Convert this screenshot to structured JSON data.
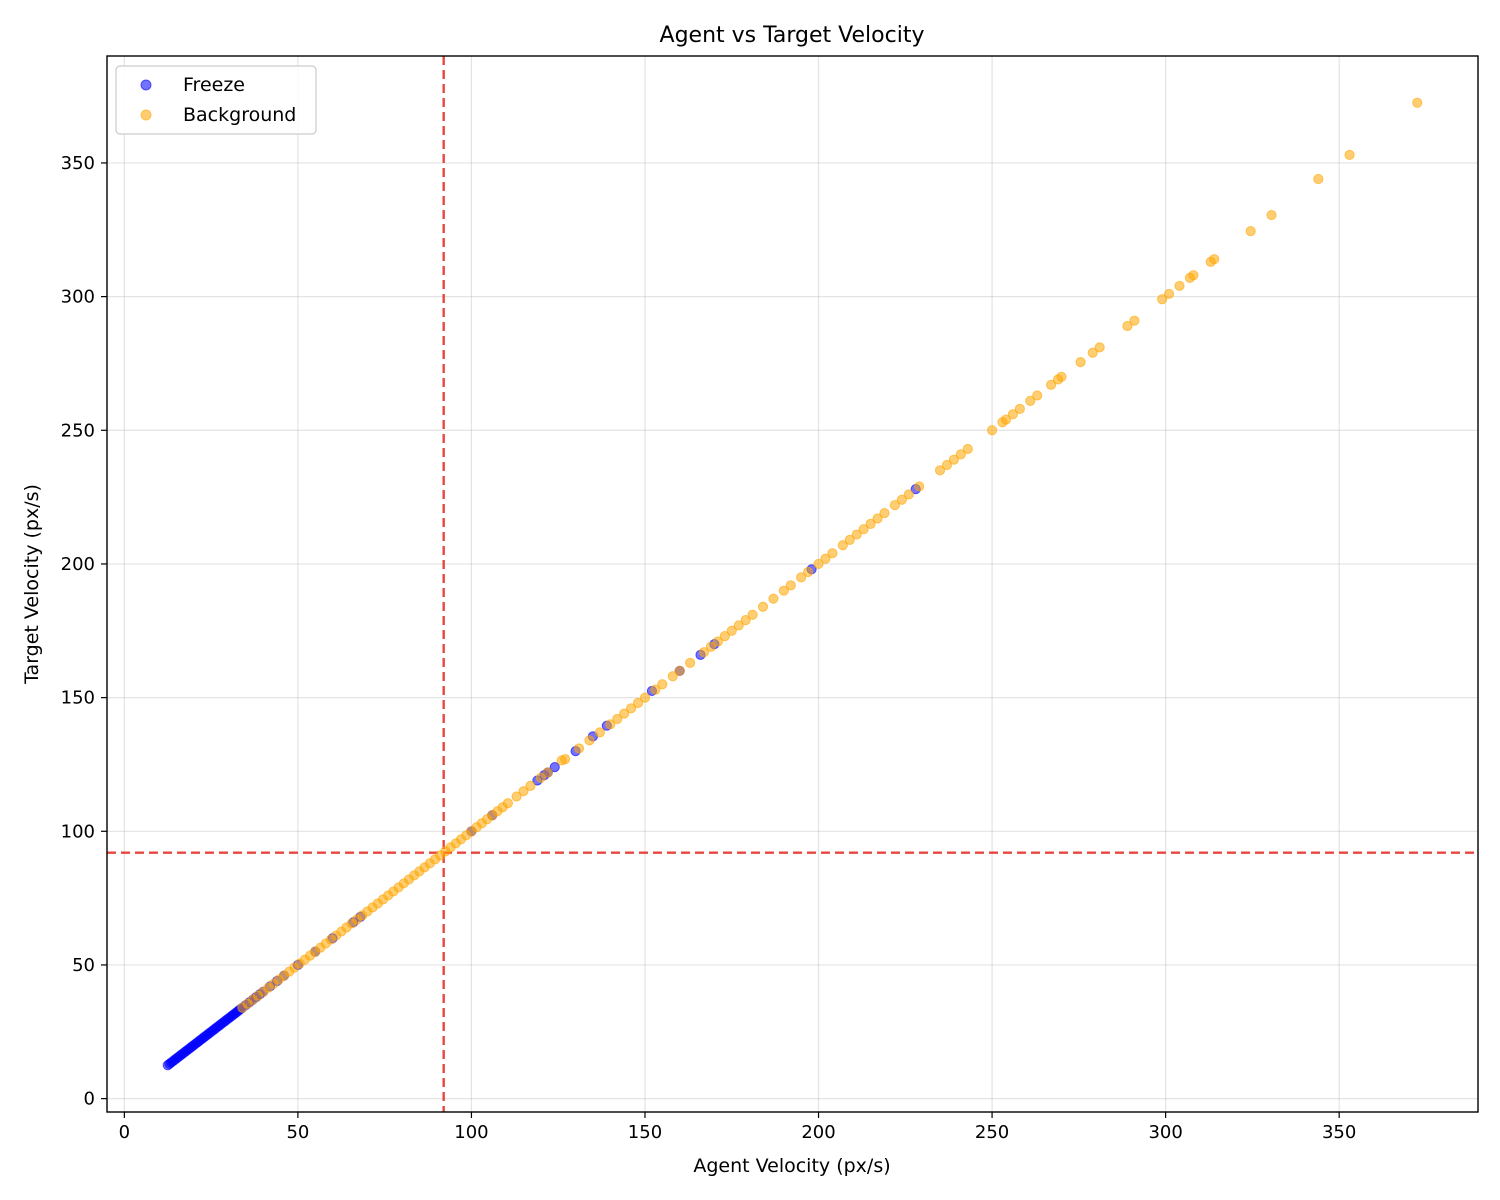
{
  "chart_data": {
    "type": "scatter",
    "title": "Agent vs Target Velocity",
    "xlabel": "Agent Velocity (px/s)",
    "ylabel": "Target Velocity (px/s)",
    "xlim": [
      -5,
      390
    ],
    "ylim": [
      -5,
      390
    ],
    "xticks": [
      0,
      50,
      100,
      150,
      200,
      250,
      300,
      350
    ],
    "yticks": [
      0,
      50,
      100,
      150,
      200,
      250,
      300,
      350
    ],
    "grid": true,
    "legend_position": "top-left",
    "reference_lines": {
      "vertical_x": 92,
      "horizontal_y": 92,
      "color": "#e8322b",
      "style": "dashed"
    },
    "series": [
      {
        "name": "Freeze",
        "color": "#0000ff",
        "points": [
          [
            12.5,
            12.5
          ],
          [
            13,
            13
          ],
          [
            13.5,
            13.5
          ],
          [
            14,
            14
          ],
          [
            14.5,
            14.5
          ],
          [
            15,
            15
          ],
          [
            15.5,
            15.5
          ],
          [
            16,
            16
          ],
          [
            16.5,
            16.5
          ],
          [
            17,
            17
          ],
          [
            17.5,
            17.5
          ],
          [
            18,
            18
          ],
          [
            18.5,
            18.5
          ],
          [
            19,
            19
          ],
          [
            19.5,
            19.5
          ],
          [
            20,
            20
          ],
          [
            20.5,
            20.5
          ],
          [
            21,
            21
          ],
          [
            21.5,
            21.5
          ],
          [
            22,
            22
          ],
          [
            22.5,
            22.5
          ],
          [
            23,
            23
          ],
          [
            23.5,
            23.5
          ],
          [
            24,
            24
          ],
          [
            24.5,
            24.5
          ],
          [
            25,
            25
          ],
          [
            25.5,
            25.5
          ],
          [
            26,
            26
          ],
          [
            26.5,
            26.5
          ],
          [
            27,
            27
          ],
          [
            27.5,
            27.5
          ],
          [
            28,
            28
          ],
          [
            28.5,
            28.5
          ],
          [
            29,
            29
          ],
          [
            29.5,
            29.5
          ],
          [
            30,
            30
          ],
          [
            30.5,
            30.5
          ],
          [
            31,
            31
          ],
          [
            31.5,
            31.5
          ],
          [
            32,
            32
          ],
          [
            32.5,
            32.5
          ],
          [
            33,
            33
          ],
          [
            33.5,
            33.5
          ],
          [
            34,
            34
          ],
          [
            35,
            35
          ],
          [
            36,
            36
          ],
          [
            37,
            37
          ],
          [
            38,
            38
          ],
          [
            39,
            39
          ],
          [
            40,
            40
          ],
          [
            42,
            42
          ],
          [
            44,
            44
          ],
          [
            46,
            46
          ],
          [
            50,
            50
          ],
          [
            55,
            55
          ],
          [
            60,
            60
          ],
          [
            66,
            66
          ],
          [
            68,
            68
          ],
          [
            100,
            100
          ],
          [
            106,
            106
          ],
          [
            119,
            119
          ],
          [
            121,
            121
          ],
          [
            122,
            122
          ],
          [
            124,
            124
          ],
          [
            130,
            130
          ],
          [
            135,
            135.5
          ],
          [
            139,
            139.5
          ],
          [
            152,
            152.5
          ],
          [
            160,
            160
          ],
          [
            166,
            166
          ],
          [
            170,
            170
          ],
          [
            198,
            198
          ],
          [
            228,
            228
          ]
        ]
      },
      {
        "name": "Background",
        "color": "#ffa500",
        "points": [
          [
            34,
            34
          ],
          [
            35.5,
            35.5
          ],
          [
            37,
            37
          ],
          [
            38.5,
            38.5
          ],
          [
            40,
            40
          ],
          [
            41.5,
            41.5
          ],
          [
            43,
            43
          ],
          [
            44.5,
            44.5
          ],
          [
            46,
            46
          ],
          [
            47.5,
            47.5
          ],
          [
            49,
            49
          ],
          [
            50.5,
            50.5
          ],
          [
            52,
            52
          ],
          [
            53.5,
            53.5
          ],
          [
            55,
            55
          ],
          [
            56.5,
            56.5
          ],
          [
            58,
            58
          ],
          [
            59.5,
            59.5
          ],
          [
            61,
            61
          ],
          [
            62.5,
            62.5
          ],
          [
            64,
            64
          ],
          [
            65.5,
            65.5
          ],
          [
            67,
            67
          ],
          [
            68.5,
            68.5
          ],
          [
            70,
            70
          ],
          [
            71.5,
            71.5
          ],
          [
            73,
            73
          ],
          [
            74.5,
            74.5
          ],
          [
            76,
            76
          ],
          [
            77.5,
            77.5
          ],
          [
            79,
            79
          ],
          [
            80.5,
            80.5
          ],
          [
            82,
            82
          ],
          [
            83.5,
            83.5
          ],
          [
            85,
            85
          ],
          [
            86.5,
            86.5
          ],
          [
            88,
            88
          ],
          [
            89.5,
            89.5
          ],
          [
            91,
            91
          ],
          [
            92.5,
            92.5
          ],
          [
            94,
            94
          ],
          [
            95.5,
            95.5
          ],
          [
            97,
            97
          ],
          [
            98.5,
            98.5
          ],
          [
            100,
            100
          ],
          [
            101.5,
            101.5
          ],
          [
            103,
            103
          ],
          [
            104.5,
            104.5
          ],
          [
            106,
            106
          ],
          [
            107.5,
            107.5
          ],
          [
            109,
            109
          ],
          [
            110.5,
            110.5
          ],
          [
            113,
            113
          ],
          [
            115,
            115
          ],
          [
            117,
            117
          ],
          [
            120,
            120
          ],
          [
            122,
            122
          ],
          [
            126,
            126.5
          ],
          [
            127,
            127
          ],
          [
            131,
            131
          ],
          [
            134,
            134
          ],
          [
            137,
            137
          ],
          [
            140,
            140
          ],
          [
            142,
            142
          ],
          [
            144,
            144
          ],
          [
            146,
            146
          ],
          [
            148,
            148
          ],
          [
            150,
            150
          ],
          [
            153,
            153
          ],
          [
            155,
            155
          ],
          [
            158,
            158
          ],
          [
            160,
            160
          ],
          [
            163,
            163
          ],
          [
            167,
            167
          ],
          [
            169,
            169
          ],
          [
            171,
            171
          ],
          [
            173,
            173
          ],
          [
            175,
            175
          ],
          [
            177,
            177
          ],
          [
            179,
            179
          ],
          [
            181,
            181
          ],
          [
            184,
            184
          ],
          [
            187,
            187
          ],
          [
            190,
            190
          ],
          [
            192,
            192
          ],
          [
            195,
            195
          ],
          [
            197,
            197
          ],
          [
            200,
            200
          ],
          [
            202,
            202
          ],
          [
            204,
            204
          ],
          [
            207,
            207
          ],
          [
            209,
            209
          ],
          [
            211,
            211
          ],
          [
            213,
            213
          ],
          [
            215,
            215
          ],
          [
            217,
            217
          ],
          [
            219,
            219
          ],
          [
            222,
            222
          ],
          [
            224,
            224
          ],
          [
            226,
            226
          ],
          [
            229,
            229
          ],
          [
            235,
            235
          ],
          [
            237,
            237
          ],
          [
            239,
            239
          ],
          [
            241,
            241
          ],
          [
            243,
            243
          ],
          [
            250,
            250
          ],
          [
            253,
            253
          ],
          [
            254,
            254
          ],
          [
            256,
            256
          ],
          [
            258,
            258
          ],
          [
            261,
            261
          ],
          [
            263,
            263
          ],
          [
            267,
            267
          ],
          [
            269,
            269
          ],
          [
            270,
            270
          ],
          [
            275.5,
            275.5
          ],
          [
            279,
            279
          ],
          [
            281,
            281
          ],
          [
            289,
            289
          ],
          [
            291,
            291
          ],
          [
            299,
            299
          ],
          [
            301,
            301
          ],
          [
            304,
            304
          ],
          [
            307,
            307
          ],
          [
            308,
            308
          ],
          [
            313,
            313
          ],
          [
            314,
            314
          ],
          [
            324.5,
            324.5
          ],
          [
            330.5,
            330.5
          ],
          [
            344,
            344
          ],
          [
            353,
            353
          ],
          [
            372.5,
            372.5
          ]
        ]
      }
    ]
  }
}
